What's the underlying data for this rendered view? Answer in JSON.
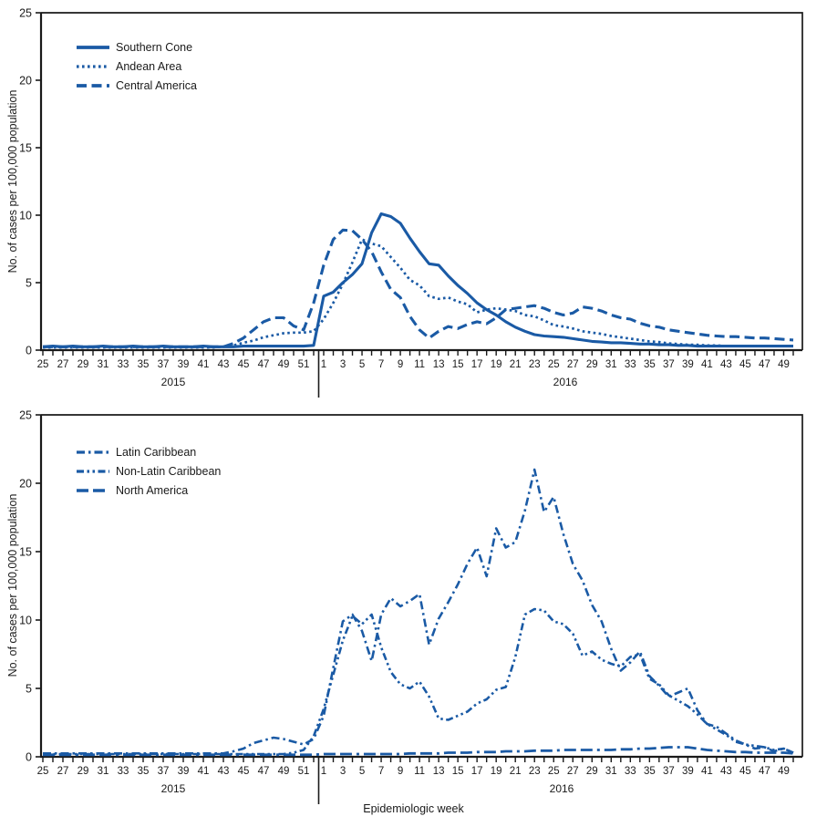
{
  "figure": {
    "background": "#ffffff",
    "accent_color": "#1a5aa5",
    "axis_color": "#1a1a1a"
  },
  "chart_data": [
    {
      "type": "line",
      "title": "",
      "ylabel": "No. of cases per 100,000 population",
      "xlabel": "",
      "ylim": [
        0,
        25
      ],
      "y_ticks": [
        0,
        5,
        10,
        15,
        20,
        25
      ],
      "grid": false,
      "legend_position": "top-left",
      "x_domain": {
        "unit": "epidemiologic week, odd weeks labeled",
        "years": [
          {
            "label": "2015",
            "start": 25,
            "end": 52
          },
          {
            "label": "2016",
            "start": 1,
            "end": 50
          }
        ]
      },
      "series": [
        {
          "name": "Southern Cone",
          "dash": "solid",
          "values": [
            0.25,
            0.3,
            0.25,
            0.3,
            0.25,
            0.25,
            0.3,
            0.25,
            0.25,
            0.3,
            0.25,
            0.25,
            0.3,
            0.25,
            0.25,
            0.25,
            0.3,
            0.25,
            0.25,
            0.25,
            0.3,
            0.3,
            0.3,
            0.3,
            0.3,
            0.3,
            0.3,
            0.35,
            4.0,
            4.3,
            5.0,
            5.6,
            6.4,
            8.7,
            10.1,
            9.9,
            9.4,
            8.3,
            7.3,
            6.4,
            6.3,
            5.5,
            4.8,
            4.2,
            3.5,
            3.0,
            2.6,
            2.1,
            1.7,
            1.4,
            1.15,
            1.05,
            1.0,
            0.95,
            0.85,
            0.75,
            0.65,
            0.6,
            0.55,
            0.55,
            0.5,
            0.45,
            0.45,
            0.4,
            0.4,
            0.35,
            0.35,
            0.3,
            0.3,
            0.3,
            0.3,
            0.3,
            0.3,
            0.3,
            0.3,
            0.3,
            0.3,
            0.3
          ]
        },
        {
          "name": "Andean Area",
          "dash": "dotted",
          "values": [
            0.2,
            0.2,
            0.2,
            0.2,
            0.2,
            0.2,
            0.2,
            0.2,
            0.2,
            0.2,
            0.2,
            0.2,
            0.2,
            0.2,
            0.2,
            0.2,
            0.2,
            0.2,
            0.25,
            0.35,
            0.55,
            0.7,
            0.95,
            1.1,
            1.25,
            1.3,
            1.3,
            1.4,
            2.3,
            3.5,
            4.9,
            6.5,
            8.2,
            7.9,
            7.7,
            6.9,
            6.1,
            5.2,
            4.8,
            4.0,
            3.8,
            3.9,
            3.6,
            3.4,
            2.8,
            3.0,
            3.1,
            3.0,
            2.9,
            2.6,
            2.5,
            2.2,
            1.85,
            1.75,
            1.6,
            1.4,
            1.3,
            1.2,
            1.05,
            0.95,
            0.85,
            0.75,
            0.65,
            0.6,
            0.5,
            0.45,
            0.4,
            0.4,
            0.35,
            0.35,
            0.3,
            0.3,
            0.3,
            0.3,
            0.3,
            0.3,
            0.3,
            0.3
          ]
        },
        {
          "name": "Central America",
          "dash": "dashed",
          "values": [
            0.25,
            0.25,
            0.25,
            0.25,
            0.25,
            0.25,
            0.25,
            0.25,
            0.25,
            0.25,
            0.25,
            0.25,
            0.25,
            0.25,
            0.25,
            0.25,
            0.25,
            0.25,
            0.25,
            0.5,
            0.9,
            1.5,
            2.1,
            2.4,
            2.4,
            1.8,
            1.5,
            3.5,
            6.3,
            8.2,
            8.9,
            8.85,
            8.2,
            7.3,
            5.8,
            4.5,
            3.9,
            2.5,
            1.5,
            0.9,
            1.4,
            1.75,
            1.6,
            1.9,
            2.1,
            1.95,
            2.4,
            3.0,
            3.1,
            3.2,
            3.3,
            3.1,
            2.8,
            2.6,
            2.75,
            3.2,
            3.1,
            2.9,
            2.6,
            2.4,
            2.3,
            2.0,
            1.8,
            1.7,
            1.5,
            1.4,
            1.3,
            1.2,
            1.1,
            1.05,
            1.0,
            1.0,
            0.95,
            0.9,
            0.9,
            0.85,
            0.8,
            0.75
          ]
        }
      ]
    },
    {
      "type": "line",
      "title": "",
      "ylabel": "No. of cases per 100,000 population",
      "xlabel": "Epidemiologic week",
      "ylim": [
        0,
        25
      ],
      "y_ticks": [
        0,
        5,
        10,
        15,
        20,
        25
      ],
      "grid": false,
      "legend_position": "top-left",
      "x_domain": {
        "unit": "epidemiologic week, odd weeks labeled",
        "years": [
          {
            "label": "2015",
            "start": 25,
            "end": 52
          },
          {
            "label": "2016",
            "start": 1,
            "end": 50
          }
        ]
      },
      "series": [
        {
          "name": "Latin Caribbean",
          "dash": "dash-dot",
          "values": [
            0.25,
            0.25,
            0.25,
            0.25,
            0.25,
            0.25,
            0.25,
            0.25,
            0.25,
            0.25,
            0.25,
            0.25,
            0.25,
            0.25,
            0.25,
            0.25,
            0.25,
            0.25,
            0.25,
            0.4,
            0.6,
            1.0,
            1.2,
            1.4,
            1.3,
            1.1,
            0.9,
            1.3,
            3.0,
            6.5,
            9.9,
            10.4,
            9.2,
            7.0,
            10.4,
            11.6,
            11.0,
            11.4,
            11.9,
            8.2,
            10.1,
            11.3,
            12.6,
            14.1,
            15.3,
            13.2,
            16.7,
            15.3,
            15.7,
            18.0,
            21.0,
            17.9,
            19.0,
            16.3,
            14.1,
            12.9,
            11.1,
            9.9,
            7.9,
            6.3,
            6.9,
            7.7,
            5.9,
            5.2,
            4.4,
            4.7,
            5.0,
            3.4,
            2.4,
            2.2,
            1.7,
            1.2,
            0.9,
            0.6,
            0.7,
            0.4,
            0.6,
            0.3
          ]
        },
        {
          "name": "Non-Latin Caribbean",
          "dash": "dash-dot-dot",
          "values": [
            0.2,
            0.2,
            0.2,
            0.2,
            0.2,
            0.2,
            0.2,
            0.2,
            0.2,
            0.2,
            0.2,
            0.2,
            0.2,
            0.2,
            0.2,
            0.2,
            0.2,
            0.2,
            0.2,
            0.2,
            0.2,
            0.2,
            0.2,
            0.2,
            0.2,
            0.3,
            0.5,
            1.5,
            3.5,
            6.0,
            8.5,
            10.3,
            9.7,
            10.4,
            8.0,
            6.2,
            5.3,
            5.0,
            5.5,
            4.4,
            2.8,
            2.7,
            3.0,
            3.3,
            3.9,
            4.2,
            4.9,
            5.1,
            7.3,
            10.4,
            10.8,
            10.7,
            9.9,
            9.7,
            9.0,
            7.4,
            7.7,
            7.1,
            6.8,
            6.6,
            7.3,
            7.5,
            5.7,
            5.3,
            4.5,
            4.1,
            3.7,
            3.1,
            2.4,
            2.0,
            1.6,
            1.1,
            0.9,
            0.8,
            0.7,
            0.5,
            0.6,
            0.3
          ]
        },
        {
          "name": "North America",
          "dash": "long-dash-dot",
          "values": [
            0.15,
            0.15,
            0.15,
            0.15,
            0.15,
            0.15,
            0.15,
            0.15,
            0.15,
            0.15,
            0.15,
            0.15,
            0.15,
            0.15,
            0.15,
            0.15,
            0.15,
            0.15,
            0.15,
            0.15,
            0.15,
            0.15,
            0.15,
            0.15,
            0.15,
            0.15,
            0.15,
            0.15,
            0.2,
            0.2,
            0.2,
            0.2,
            0.2,
            0.2,
            0.2,
            0.2,
            0.2,
            0.25,
            0.25,
            0.25,
            0.25,
            0.3,
            0.3,
            0.3,
            0.35,
            0.35,
            0.35,
            0.4,
            0.4,
            0.4,
            0.45,
            0.45,
            0.45,
            0.5,
            0.5,
            0.5,
            0.5,
            0.5,
            0.5,
            0.55,
            0.55,
            0.6,
            0.6,
            0.65,
            0.7,
            0.7,
            0.7,
            0.6,
            0.5,
            0.45,
            0.4,
            0.35,
            0.35,
            0.3,
            0.3,
            0.3,
            0.3,
            0.25
          ]
        }
      ]
    }
  ]
}
